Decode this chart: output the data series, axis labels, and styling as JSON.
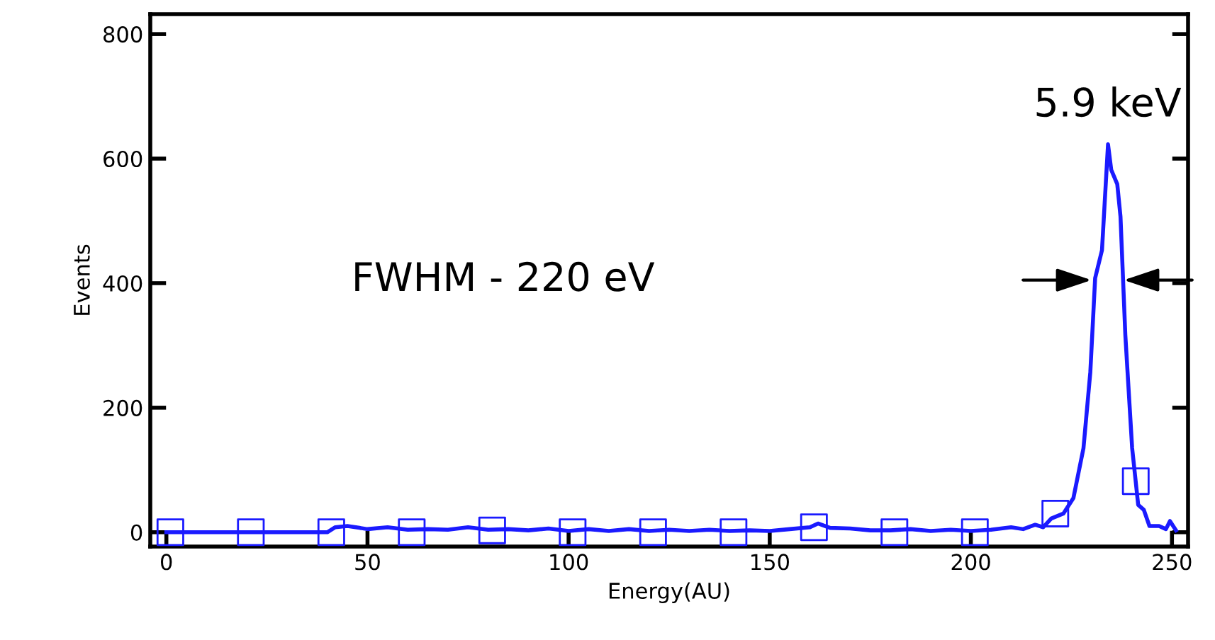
{
  "chart_data": {
    "type": "line",
    "xlabel": "Energy(AU)",
    "ylabel": "Events",
    "xlim": [
      -4,
      254
    ],
    "ylim": [
      -23,
      832
    ],
    "xticks": [
      0,
      50,
      100,
      150,
      200,
      250
    ],
    "yticks": [
      0,
      200,
      400,
      600,
      800
    ],
    "grid": false,
    "legend": false,
    "series": [
      {
        "color": "#1a1aff",
        "marker": "none",
        "x": [
          0,
          20,
          40,
          42,
          45,
          48,
          50,
          55,
          60,
          65,
          70,
          75,
          80,
          85,
          90,
          95,
          100,
          105,
          110,
          115,
          120,
          125,
          130,
          135,
          140,
          145,
          150,
          155,
          160,
          162,
          165,
          170,
          175,
          180,
          185,
          190,
          195,
          200,
          205,
          210,
          213,
          216,
          218,
          220,
          223,
          225.5,
          228,
          229.7,
          230.9,
          232.6,
          234.1,
          234.9,
          236.4,
          237.2,
          238.4,
          240.1,
          241.6,
          243,
          244.4,
          246.8,
          248.5,
          249.5,
          251
        ],
        "values": [
          0,
          0,
          0,
          8,
          10,
          7,
          5,
          8,
          4,
          5,
          4,
          8,
          4,
          5,
          3,
          6,
          2,
          5,
          2,
          5,
          2,
          4,
          2,
          4,
          2,
          3,
          2,
          5,
          8,
          14,
          7,
          6,
          3,
          3,
          5,
          2,
          4,
          2,
          4,
          8,
          5,
          12,
          8,
          22,
          30,
          55,
          135,
          257,
          408,
          453,
          623,
          582,
          559,
          507,
          317,
          135,
          44,
          36,
          10,
          10,
          5,
          18,
          3
        ]
      },
      {
        "type": "scatter",
        "color": "#1a1aff",
        "marker": "square",
        "x": [
          1,
          21,
          41,
          61,
          81,
          101,
          121,
          141,
          161,
          181,
          201,
          221,
          241
        ],
        "values": [
          0,
          0,
          0,
          0,
          3,
          0,
          0,
          0,
          8,
          0,
          0,
          30,
          82
        ]
      }
    ],
    "annotations": [
      {
        "text": "5.9 keV",
        "x": 234,
        "y": 623
      },
      "FWHM - 220 eV"
    ]
  }
}
